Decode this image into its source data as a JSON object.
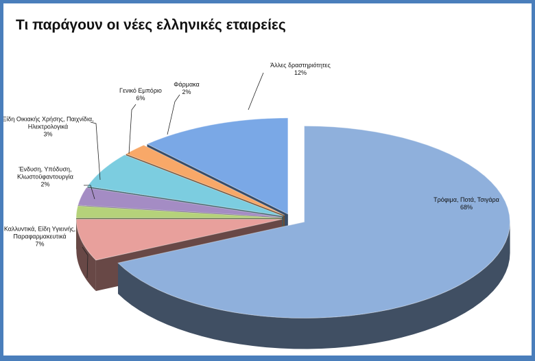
{
  "chart_data": {
    "type": "pie",
    "title": "Τι παράγουν οι νέες ελληνικές εταιρείες",
    "categories": [
      "Τρόφιμα, Ποτά, Τσιγάρα",
      "Καλλυντικά, Είδη Υγιεινής, Παραφαρμακευτικά",
      "Ένδυση, Υπόδυση, Κλωστοϋφαντουργία",
      "Είδη Οικιακής Χρήσης, Παιχνίδια, Ηλεκτρολογικά",
      "Γενικό Εμπόριο",
      "Φάρμακα",
      "Άλλες δραστηριότητες"
    ],
    "values": [
      68,
      7,
      2,
      3,
      6,
      2,
      12
    ],
    "value_labels": [
      "68%",
      "7%",
      "2%",
      "3%",
      "6%",
      "2%",
      "12%"
    ],
    "colors": [
      "#8fb0dc",
      "#e8a09c",
      "#b5d27a",
      "#a48cc4",
      "#7ccde0",
      "#f8a868",
      "#7aa8e6"
    ]
  }
}
